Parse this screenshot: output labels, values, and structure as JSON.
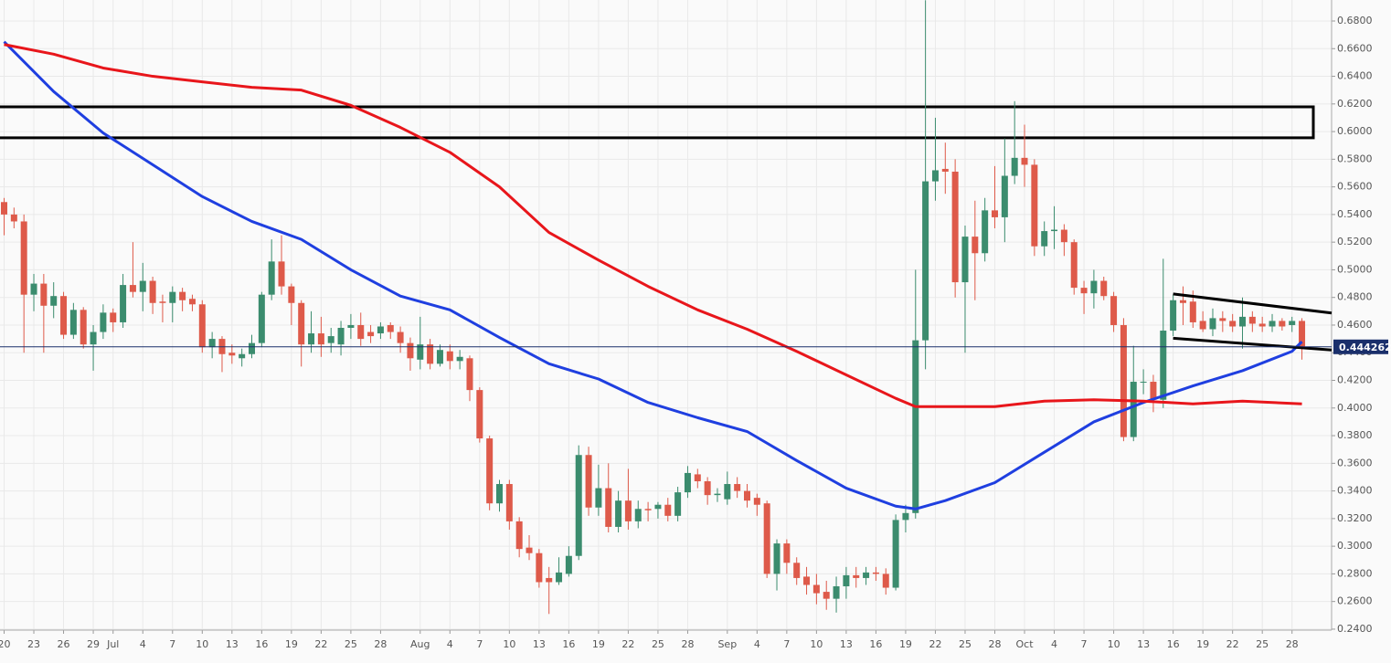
{
  "chart_data": {
    "type": "candlestick",
    "up_color": "#3b8c6e",
    "down_color": "#de5a4a",
    "categories": [
      "Jun 20",
      "Jun 21",
      "Jun 22",
      "Jun 23",
      "Jun 24",
      "Jun 25",
      "Jun 26",
      "Jun 27",
      "Jun 28",
      "Jun 29",
      "Jun 30",
      "Jul 1",
      "Jul 2",
      "Jul 3",
      "Jul 4",
      "Jul 5",
      "Jul 6",
      "Jul 7",
      "Jul 8",
      "Jul 9",
      "Jul 10",
      "Jul 11",
      "Jul 12",
      "Jul 13",
      "Jul 14",
      "Jul 15",
      "Jul 16",
      "Jul 17",
      "Jul 18",
      "Jul 19",
      "Jul 20",
      "Jul 21",
      "Jul 22",
      "Jul 23",
      "Jul 24",
      "Jul 25",
      "Jul 26",
      "Jul 27",
      "Jul 28",
      "Jul 29",
      "Jul 30",
      "Jul 31",
      "Aug 1",
      "Aug 2",
      "Aug 3",
      "Aug 4",
      "Aug 5",
      "Aug 6",
      "Aug 7",
      "Aug 8",
      "Aug 9",
      "Aug 10",
      "Aug 11",
      "Aug 12",
      "Aug 13",
      "Aug 14",
      "Aug 15",
      "Aug 16",
      "Aug 17",
      "Aug 18",
      "Aug 19",
      "Aug 20",
      "Aug 21",
      "Aug 22",
      "Aug 23",
      "Aug 24",
      "Aug 25",
      "Aug 26",
      "Aug 27",
      "Aug 28",
      "Aug 29",
      "Aug 30",
      "Aug 31",
      "Sep 1",
      "Sep 2",
      "Sep 3",
      "Sep 4",
      "Sep 5",
      "Sep 6",
      "Sep 7",
      "Sep 8",
      "Sep 9",
      "Sep 10",
      "Sep 11",
      "Sep 12",
      "Sep 13",
      "Sep 14",
      "Sep 15",
      "Sep 16",
      "Sep 17",
      "Sep 18",
      "Sep 19",
      "Sep 20",
      "Sep 21",
      "Sep 22",
      "Sep 23",
      "Sep 24",
      "Sep 25",
      "Sep 26",
      "Sep 27",
      "Sep 28",
      "Sep 29",
      "Sep 30",
      "Oct 1",
      "Oct 2",
      "Oct 3",
      "Oct 4",
      "Oct 5",
      "Oct 6",
      "Oct 7",
      "Oct 8",
      "Oct 9",
      "Oct 10",
      "Oct 11",
      "Oct 12",
      "Oct 13",
      "Oct 14",
      "Oct 15",
      "Oct 16",
      "Oct 17",
      "Oct 18",
      "Oct 19",
      "Oct 20",
      "Oct 21",
      "Oct 22",
      "Oct 23",
      "Oct 24",
      "Oct 25",
      "Oct 26",
      "Oct 27",
      "Oct 28",
      "Oct 29"
    ],
    "open": [
      0.549,
      0.54,
      0.535,
      0.482,
      0.49,
      0.474,
      0.481,
      0.453,
      0.471,
      0.446,
      0.455,
      0.469,
      0.462,
      0.489,
      0.484,
      0.492,
      0.477,
      0.476,
      0.484,
      0.479,
      0.475,
      0.444,
      0.45,
      0.44,
      0.436,
      0.439,
      0.447,
      0.482,
      0.506,
      0.488,
      0.476,
      0.446,
      0.454,
      0.447,
      0.446,
      0.458,
      0.46,
      0.455,
      0.454,
      0.46,
      0.455,
      0.447,
      0.435,
      0.446,
      0.432,
      0.441,
      0.434,
      0.436,
      0.413,
      0.378,
      0.331,
      0.345,
      0.318,
      0.299,
      0.295,
      0.277,
      0.274,
      0.28,
      0.293,
      0.366,
      0.328,
      0.342,
      0.314,
      0.333,
      0.318,
      0.327,
      0.327,
      0.33,
      0.322,
      0.339,
      0.352,
      0.347,
      0.337,
      0.334,
      0.345,
      0.34,
      0.335,
      0.331,
      0.28,
      0.302,
      0.288,
      0.278,
      0.272,
      0.267,
      0.262,
      0.271,
      0.279,
      0.277,
      0.281,
      0.28,
      0.27,
      0.319,
      0.324,
      0.449,
      0.564,
      0.573,
      0.571,
      0.491,
      0.524,
      0.512,
      0.543,
      0.538,
      0.568,
      0.581,
      0.576,
      0.517,
      0.528,
      0.529,
      0.52,
      0.487,
      0.483,
      0.492,
      0.481,
      0.46,
      0.379,
      0.419,
      0.419,
      0.406,
      0.456,
      0.478,
      0.477,
      0.463,
      0.457,
      0.465,
      0.463,
      0.459,
      0.466,
      0.461,
      0.459,
      0.463,
      0.46,
      0.463
    ],
    "high": [
      0.552,
      0.545,
      0.54,
      0.497,
      0.497,
      0.491,
      0.484,
      0.476,
      0.473,
      0.46,
      0.475,
      0.472,
      0.497,
      0.52,
      0.505,
      0.495,
      0.482,
      0.488,
      0.487,
      0.482,
      0.478,
      0.455,
      0.452,
      0.446,
      0.443,
      0.453,
      0.484,
      0.522,
      0.525,
      0.49,
      0.478,
      0.47,
      0.466,
      0.458,
      0.463,
      0.468,
      0.469,
      0.46,
      0.462,
      0.462,
      0.459,
      0.451,
      0.466,
      0.45,
      0.446,
      0.446,
      0.442,
      0.438,
      0.415,
      0.38,
      0.348,
      0.348,
      0.321,
      0.308,
      0.298,
      0.285,
      0.292,
      0.3,
      0.373,
      0.372,
      0.359,
      0.36,
      0.34,
      0.356,
      0.333,
      0.332,
      0.332,
      0.335,
      0.343,
      0.358,
      0.356,
      0.35,
      0.342,
      0.354,
      0.35,
      0.345,
      0.338,
      0.333,
      0.305,
      0.305,
      0.292,
      0.285,
      0.28,
      0.275,
      0.278,
      0.285,
      0.285,
      0.285,
      0.285,
      0.284,
      0.323,
      0.33,
      0.5,
      0.695,
      0.61,
      0.592,
      0.58,
      0.532,
      0.55,
      0.552,
      0.575,
      0.595,
      0.622,
      0.605,
      0.58,
      0.535,
      0.546,
      0.533,
      0.522,
      0.492,
      0.5,
      0.495,
      0.484,
      0.465,
      0.445,
      0.428,
      0.424,
      0.508,
      0.482,
      0.488,
      0.485,
      0.47,
      0.472,
      0.47,
      0.468,
      0.48,
      0.47,
      0.466,
      0.468,
      0.465,
      0.466,
      0.465
    ],
    "low": [
      0.525,
      0.53,
      0.44,
      0.47,
      0.44,
      0.465,
      0.45,
      0.45,
      0.443,
      0.427,
      0.45,
      0.455,
      0.458,
      0.48,
      0.47,
      0.468,
      0.462,
      0.462,
      0.47,
      0.47,
      0.44,
      0.436,
      0.426,
      0.432,
      0.43,
      0.436,
      0.444,
      0.478,
      0.482,
      0.46,
      0.43,
      0.44,
      0.437,
      0.44,
      0.438,
      0.45,
      0.445,
      0.447,
      0.45,
      0.45,
      0.44,
      0.427,
      0.428,
      0.428,
      0.43,
      0.428,
      0.428,
      0.405,
      0.375,
      0.326,
      0.325,
      0.312,
      0.292,
      0.29,
      0.27,
      0.251,
      0.272,
      0.278,
      0.29,
      0.322,
      0.322,
      0.31,
      0.31,
      0.312,
      0.313,
      0.318,
      0.32,
      0.318,
      0.318,
      0.335,
      0.342,
      0.33,
      0.332,
      0.33,
      0.335,
      0.328,
      0.322,
      0.277,
      0.268,
      0.28,
      0.272,
      0.265,
      0.258,
      0.254,
      0.252,
      0.262,
      0.27,
      0.272,
      0.275,
      0.265,
      0.268,
      0.31,
      0.32,
      0.428,
      0.55,
      0.555,
      0.48,
      0.44,
      0.478,
      0.506,
      0.53,
      0.52,
      0.562,
      0.56,
      0.51,
      0.51,
      0.515,
      0.51,
      0.482,
      0.468,
      0.472,
      0.478,
      0.455,
      0.376,
      0.376,
      0.41,
      0.397,
      0.4,
      0.452,
      0.46,
      0.458,
      0.455,
      0.452,
      0.455,
      0.455,
      0.443,
      0.455,
      0.455,
      0.455,
      0.456,
      0.455,
      0.435
    ],
    "close": [
      0.54,
      0.535,
      0.482,
      0.49,
      0.474,
      0.481,
      0.453,
      0.471,
      0.446,
      0.455,
      0.469,
      0.462,
      0.489,
      0.484,
      0.492,
      0.476,
      0.476,
      0.484,
      0.478,
      0.475,
      0.444,
      0.45,
      0.439,
      0.438,
      0.439,
      0.447,
      0.482,
      0.506,
      0.488,
      0.476,
      0.446,
      0.454,
      0.446,
      0.452,
      0.458,
      0.46,
      0.45,
      0.452,
      0.459,
      0.455,
      0.447,
      0.436,
      0.446,
      0.432,
      0.442,
      0.434,
      0.437,
      0.413,
      0.378,
      0.331,
      0.345,
      0.318,
      0.298,
      0.295,
      0.274,
      0.274,
      0.281,
      0.293,
      0.366,
      0.328,
      0.342,
      0.314,
      0.333,
      0.318,
      0.327,
      0.326,
      0.33,
      0.322,
      0.339,
      0.353,
      0.347,
      0.337,
      0.338,
      0.345,
      0.34,
      0.333,
      0.33,
      0.28,
      0.302,
      0.288,
      0.277,
      0.272,
      0.266,
      0.262,
      0.271,
      0.279,
      0.277,
      0.281,
      0.28,
      0.27,
      0.319,
      0.324,
      0.449,
      0.564,
      0.572,
      0.571,
      0.491,
      0.524,
      0.512,
      0.543,
      0.538,
      0.568,
      0.581,
      0.576,
      0.517,
      0.528,
      0.529,
      0.52,
      0.487,
      0.483,
      0.492,
      0.481,
      0.46,
      0.379,
      0.419,
      0.419,
      0.406,
      0.456,
      0.478,
      0.476,
      0.462,
      0.457,
      0.465,
      0.463,
      0.459,
      0.466,
      0.461,
      0.459,
      0.463,
      0.459,
      0.463,
      0.444262
    ],
    "lines": [
      {
        "color": "#1f3fe0",
        "x": [
          "Jun 20",
          "Jun 25",
          "Jun 30",
          "Jul 5",
          "Jul 10",
          "Jul 15",
          "Jul 20",
          "Jul 25",
          "Jul 30",
          "Aug 4",
          "Aug 9",
          "Aug 14",
          "Aug 19",
          "Aug 24",
          "Aug 29",
          "Sep 3",
          "Sep 8",
          "Sep 13",
          "Sep 18",
          "Sep 20",
          "Sep 23",
          "Sep 28",
          "Oct 3",
          "Oct 8",
          "Oct 13",
          "Oct 18",
          "Oct 23",
          "Oct 28",
          "Oct 29"
        ],
        "values": [
          0.665,
          0.629,
          0.599,
          0.576,
          0.553,
          0.535,
          0.522,
          0.5,
          0.481,
          0.471,
          0.451,
          0.432,
          0.421,
          0.404,
          0.393,
          0.383,
          0.362,
          0.342,
          0.329,
          0.327,
          0.333,
          0.346,
          0.368,
          0.39,
          0.404,
          0.416,
          0.427,
          0.441,
          0.448
        ]
      },
      {
        "color": "#e8161b",
        "x": [
          "Jun 20",
          "Jun 25",
          "Jun 30",
          "Jul 5",
          "Jul 10",
          "Jul 15",
          "Jul 20",
          "Jul 25",
          "Jul 30",
          "Aug 4",
          "Aug 9",
          "Aug 14",
          "Aug 19",
          "Aug 24",
          "Aug 29",
          "Sep 3",
          "Sep 8",
          "Sep 13",
          "Sep 18",
          "Sep 20",
          "Sep 23",
          "Sep 28",
          "Oct 3",
          "Oct 8",
          "Oct 13",
          "Oct 18",
          "Oct 23",
          "Oct 29"
        ],
        "values": [
          0.663,
          0.656,
          0.646,
          0.64,
          0.636,
          0.632,
          0.63,
          0.619,
          0.603,
          0.585,
          0.56,
          0.527,
          0.507,
          0.488,
          0.471,
          0.457,
          0.441,
          0.424,
          0.407,
          0.401,
          0.401,
          0.401,
          0.405,
          0.406,
          0.405,
          0.403,
          0.405,
          0.403
        ]
      }
    ],
    "zone": [
      0.5955,
      0.6179
    ],
    "trendlines": [
      {
        "x": [
          "Oct 16",
          "Oct 29"
        ],
        "y": [
          0.4825,
          0.4713
        ]
      },
      {
        "x": [
          "Oct 16",
          "Oct 29"
        ],
        "y": [
          0.4505,
          0.4436
        ]
      }
    ],
    "last_price": 0.444262,
    "ylim": [
      0.2393,
      0.6952
    ],
    "yticks": [
      {
        "value": 0.24,
        "label": "0.2400"
      },
      {
        "value": 0.26,
        "label": "0.2600"
      },
      {
        "value": 0.28,
        "label": "0.2800"
      },
      {
        "value": 0.3,
        "label": "0.3000"
      },
      {
        "value": 0.32,
        "label": "0.3200"
      },
      {
        "value": 0.34,
        "label": "0.3400"
      },
      {
        "value": 0.36,
        "label": "0.3600"
      },
      {
        "value": 0.38,
        "label": "0.3800"
      },
      {
        "value": 0.4,
        "label": "0.4000"
      },
      {
        "value": 0.42,
        "label": "0.4200"
      },
      {
        "value": 0.44,
        "label": "0.4400"
      },
      {
        "value": 0.46,
        "label": "0.4600"
      },
      {
        "value": 0.48,
        "label": "0.4800"
      },
      {
        "value": 0.5,
        "label": "0.5000"
      },
      {
        "value": 0.52,
        "label": "0.5200"
      },
      {
        "value": 0.54,
        "label": "0.5400"
      },
      {
        "value": 0.56,
        "label": "0.5600"
      },
      {
        "value": 0.58,
        "label": "0.5800"
      },
      {
        "value": 0.6,
        "label": "0.6000"
      },
      {
        "value": 0.62,
        "label": "0.6200"
      },
      {
        "value": 0.64,
        "label": "0.6400"
      },
      {
        "value": 0.66,
        "label": "0.6600"
      },
      {
        "value": 0.68,
        "label": "0.6800"
      }
    ],
    "xticks": [
      {
        "value": "Jun 20",
        "label": "20"
      },
      {
        "value": "Jun 23",
        "label": "23"
      },
      {
        "value": "Jun 26",
        "label": "26"
      },
      {
        "value": "Jun 29",
        "label": "29"
      },
      {
        "value": "Jul 1",
        "label": "Jul"
      },
      {
        "value": "Jul 4",
        "label": "4"
      },
      {
        "value": "Jul 7",
        "label": "7"
      },
      {
        "value": "Jul 10",
        "label": "10"
      },
      {
        "value": "Jul 13",
        "label": "13"
      },
      {
        "value": "Jul 16",
        "label": "16"
      },
      {
        "value": "Jul 19",
        "label": "19"
      },
      {
        "value": "Jul 22",
        "label": "22"
      },
      {
        "value": "Jul 25",
        "label": "25"
      },
      {
        "value": "Jul 28",
        "label": "28"
      },
      {
        "value": "Aug 1",
        "label": "Aug"
      },
      {
        "value": "Aug 4",
        "label": "4"
      },
      {
        "value": "Aug 7",
        "label": "7"
      },
      {
        "value": "Aug 10",
        "label": "10"
      },
      {
        "value": "Aug 13",
        "label": "13"
      },
      {
        "value": "Aug 16",
        "label": "16"
      },
      {
        "value": "Aug 19",
        "label": "19"
      },
      {
        "value": "Aug 22",
        "label": "22"
      },
      {
        "value": "Aug 25",
        "label": "25"
      },
      {
        "value": "Aug 28",
        "label": "28"
      },
      {
        "value": "Sep 1",
        "label": "Sep"
      },
      {
        "value": "Sep 4",
        "label": "4"
      },
      {
        "value": "Sep 7",
        "label": "7"
      },
      {
        "value": "Sep 10",
        "label": "10"
      },
      {
        "value": "Sep 13",
        "label": "13"
      },
      {
        "value": "Sep 16",
        "label": "16"
      },
      {
        "value": "Sep 19",
        "label": "19"
      },
      {
        "value": "Sep 22",
        "label": "22"
      },
      {
        "value": "Sep 25",
        "label": "25"
      },
      {
        "value": "Sep 28",
        "label": "28"
      },
      {
        "value": "Oct 1",
        "label": "Oct"
      },
      {
        "value": "Oct 4",
        "label": "4"
      },
      {
        "value": "Oct 7",
        "label": "7"
      },
      {
        "value": "Oct 10",
        "label": "10"
      },
      {
        "value": "Oct 13",
        "label": "13"
      },
      {
        "value": "Oct 16",
        "label": "16"
      },
      {
        "value": "Oct 19",
        "label": "19"
      },
      {
        "value": "Oct 22",
        "label": "22"
      },
      {
        "value": "Oct 25",
        "label": "25"
      },
      {
        "value": "Oct 28",
        "label": "28"
      }
    ],
    "grid": true
  }
}
